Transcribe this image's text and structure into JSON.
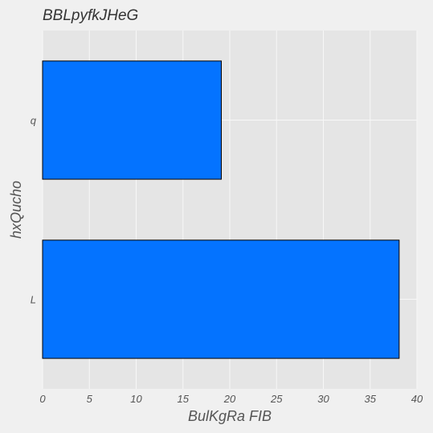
{
  "chart_data": {
    "type": "bar",
    "orientation": "horizontal",
    "title": "BBLpyfkJHeG",
    "xlabel": "BulKgRa FIB",
    "ylabel": "hxQucho",
    "categories": [
      "L",
      "q"
    ],
    "values": [
      38.1,
      19.1
    ],
    "xlim": [
      0,
      40
    ],
    "xticks": [
      0,
      5,
      10,
      15,
      20,
      25,
      30,
      35,
      40
    ],
    "grid": true,
    "bar_color": "#0473ff",
    "edge_color": "#000000",
    "background_color": "#e5e5e5"
  }
}
